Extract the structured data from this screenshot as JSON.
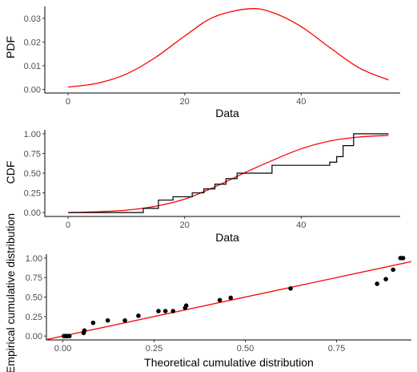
{
  "colors": {
    "curve": "#ff0000",
    "data": "#000000",
    "axis": "#000000",
    "tick_text": "#4d4d4d"
  },
  "chart_data": [
    {
      "type": "line",
      "id": "pdf",
      "xlabel": "Data",
      "ylabel": "PDF",
      "xlim": [
        -4,
        57
      ],
      "ylim": [
        -0.0015,
        0.035
      ],
      "xticks": [
        0,
        20,
        40
      ],
      "xtick_labels": [
        "0",
        "20",
        "40"
      ],
      "yticks": [
        0.0,
        0.01,
        0.02,
        0.03
      ],
      "ytick_labels": [
        "0.00",
        "0.01",
        "0.02",
        "0.03"
      ],
      "grid": false,
      "series": [
        {
          "x": [
            0,
            5,
            10,
            15,
            20,
            25,
            31,
            35,
            40,
            45,
            50,
            55
          ],
          "y": [
            0.001,
            0.0026,
            0.0065,
            0.0135,
            0.0225,
            0.0305,
            0.034,
            0.0325,
            0.0265,
            0.0175,
            0.009,
            0.004
          ]
        }
      ]
    },
    {
      "type": "line",
      "id": "cdf",
      "xlabel": "Data",
      "ylabel": "CDF",
      "xlim": [
        -4,
        57
      ],
      "ylim": [
        -0.05,
        1.05
      ],
      "xticks": [
        0,
        20,
        40
      ],
      "xtick_labels": [
        "0",
        "20",
        "40"
      ],
      "yticks": [
        0.0,
        0.25,
        0.5,
        0.75,
        1.0
      ],
      "ytick_labels": [
        "0.00",
        "0.25",
        "0.50",
        "0.75",
        "1.00"
      ],
      "grid": false,
      "series": [
        {
          "x": [
            0,
            5,
            10,
            15,
            20,
            25,
            31,
            35,
            40,
            45,
            50,
            55
          ],
          "y": [
            0.0,
            0.01,
            0.03,
            0.08,
            0.17,
            0.32,
            0.53,
            0.66,
            0.81,
            0.91,
            0.96,
            0.98
          ]
        },
        {
          "x": [
            0,
            12.9,
            15.5,
            18,
            21.3,
            23.3,
            25.2,
            27.1,
            29,
            35,
            44.9,
            46.1,
            47.2,
            49,
            55
          ],
          "y": [
            0.0,
            0.053,
            0.158,
            0.2,
            0.25,
            0.3,
            0.36,
            0.43,
            0.5,
            0.6,
            0.64,
            0.71,
            0.85,
            1.0,
            1.0
          ]
        }
      ]
    },
    {
      "type": "scatter",
      "id": "pp",
      "xlabel": "Theoretical cumulative distribution",
      "ylabel": "Empirical cumulative distribution",
      "xlim": [
        -0.045,
        0.955
      ],
      "ylim": [
        -0.05,
        1.05
      ],
      "xticks": [
        0.0,
        0.25,
        0.5,
        0.75
      ],
      "xtick_labels": [
        "0.00",
        "0.25",
        "0.50",
        "0.75"
      ],
      "yticks": [
        0.0,
        0.25,
        0.5,
        0.75,
        1.0
      ],
      "ytick_labels": [
        "0.00",
        "0.25",
        "0.50",
        "0.75",
        "1.00"
      ],
      "grid": false,
      "reference_line": {
        "x": [
          -0.045,
          0.955
        ],
        "y": [
          -0.045,
          0.955
        ]
      },
      "points": {
        "x": [
          0.003,
          0.007,
          0.012,
          0.018,
          0.057,
          0.059,
          0.083,
          0.123,
          0.17,
          0.207,
          0.262,
          0.281,
          0.302,
          0.335,
          0.338,
          0.43,
          0.46,
          0.624,
          0.861,
          0.885,
          0.905,
          0.925,
          0.932
        ],
        "y": [
          0.0,
          0.0,
          0.0,
          0.0,
          0.04,
          0.07,
          0.17,
          0.2,
          0.2,
          0.26,
          0.32,
          0.32,
          0.32,
          0.36,
          0.39,
          0.46,
          0.49,
          0.61,
          0.67,
          0.73,
          0.85,
          1.0,
          1.0
        ]
      }
    }
  ]
}
